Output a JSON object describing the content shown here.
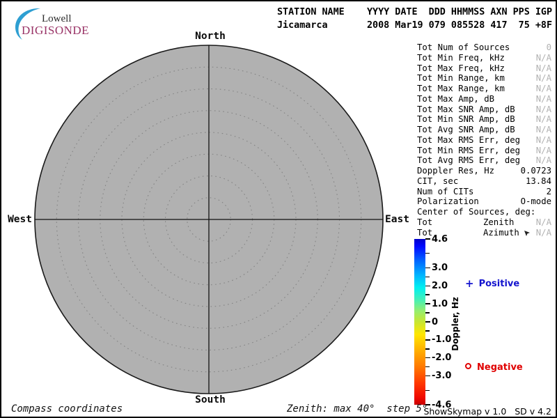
{
  "logo": {
    "top": "Lowell",
    "bottom": "DIGISONDE",
    "brand_color": "#993366",
    "crescent_color": "#2E9FD2"
  },
  "header": {
    "line1": "STATION NAME    YYYY DATE  DDD HHMMSS AXN PPS IGP",
    "line2": "Jicamarca       2008 Mar19 079 085528 417  75 +8F",
    "station": "Jicamarca",
    "year": "2008",
    "date": "Mar19",
    "ddd": "079",
    "hhmmss": "085528",
    "axn": "417",
    "pps": "75",
    "igp": "+8F"
  },
  "skymap": {
    "north": "North",
    "south": "South",
    "west": "West",
    "east": "East",
    "fill_color": "#b1b1b1",
    "zenith_max_deg": 40,
    "zenith_step_deg": 5
  },
  "stats": {
    "rows": [
      {
        "label": "Tot Num of Sources",
        "value": "0",
        "dim": true
      },
      {
        "label": "Tot Min Freq, kHz",
        "value": "N/A",
        "dim": true
      },
      {
        "label": "Tot Max Freq, kHz",
        "value": "N/A",
        "dim": true
      },
      {
        "label": "Tot Min Range, km",
        "value": "N/A",
        "dim": true
      },
      {
        "label": "Tot Max Range, km",
        "value": "N/A",
        "dim": true
      },
      {
        "label": "Tot Max Amp, dB",
        "value": "N/A",
        "dim": true
      },
      {
        "label": "Tot Max SNR Amp, dB",
        "value": "N/A",
        "dim": true
      },
      {
        "label": "Tot Min SNR Amp, dB",
        "value": "N/A",
        "dim": true
      },
      {
        "label": "Tot Avg SNR Amp, dB",
        "value": "N/A",
        "dim": true
      },
      {
        "label": "Tot Max RMS Err, deg",
        "value": "N/A",
        "dim": true
      },
      {
        "label": "Tot Min RMS Err, deg",
        "value": "N/A",
        "dim": true
      },
      {
        "label": "Tot Avg RMS Err, deg",
        "value": "N/A",
        "dim": true
      },
      {
        "label": "Doppler Res, Hz",
        "value": "0.0723",
        "dim": false
      },
      {
        "label": "CIT, sec",
        "value": "13.84",
        "dim": false
      },
      {
        "label": "Num of CITs",
        "value": "2",
        "dim": false
      },
      {
        "label": "Polarization",
        "value": "O-mode",
        "dim": false
      },
      {
        "label": "Center of Sources, deg:",
        "value": "",
        "dim": false
      },
      {
        "label": "Tot",
        "mid": "Zenith",
        "value": "N/A",
        "dim": true
      },
      {
        "label": "Tot",
        "mid": "Azimuth",
        "value": "N/A",
        "dim": true,
        "cursor": true
      }
    ]
  },
  "colorbar": {
    "label": "Doppler, Hz",
    "max": 4.6,
    "min": -4.6,
    "major_ticks": [
      4.6,
      3.0,
      2.0,
      1.0,
      0,
      -1.0,
      -2.0,
      -3.0,
      -4.6
    ],
    "major_labels": [
      "4.6",
      "3.0",
      "2.0",
      "1.0",
      "0",
      "-1.0",
      "-2.0",
      "-3.0",
      "-4.6"
    ],
    "minor_ticks": [
      3.8,
      2.5,
      1.5,
      0.5,
      -0.5,
      -1.5,
      -2.5,
      -3.8
    ],
    "gradient": [
      {
        "v": 4.6,
        "c": "#0000c8"
      },
      {
        "v": 4.2,
        "c": "#0008ff"
      },
      {
        "v": 3.4,
        "c": "#0064ff"
      },
      {
        "v": 2.6,
        "c": "#00b4ff"
      },
      {
        "v": 1.9,
        "c": "#00f0f0"
      },
      {
        "v": 1.2,
        "c": "#48f0b4"
      },
      {
        "v": 0.6,
        "c": "#96ee6e"
      },
      {
        "v": 0.0,
        "c": "#c8e632"
      },
      {
        "v": -0.7,
        "c": "#ffe600"
      },
      {
        "v": -1.5,
        "c": "#ffb400"
      },
      {
        "v": -2.5,
        "c": "#ff7800"
      },
      {
        "v": -3.4,
        "c": "#ff3700"
      },
      {
        "v": -4.2,
        "c": "#f00a00"
      },
      {
        "v": -4.6,
        "c": "#c80000"
      }
    ]
  },
  "legend": {
    "positive_label": "Positive",
    "negative_label": "Negative",
    "positive_color": "#1414ce",
    "negative_color": "#e00000"
  },
  "footer": {
    "left": "Compass coordinates",
    "center": "Zenith: max 40°  step 5°",
    "right": "ShowSkymap v 1.0   SD v 4.2"
  },
  "chart_data": {
    "type": "scatter",
    "title": "Skymap, compass coordinates",
    "points": [],
    "num_sources": 0,
    "zenith_rings_deg": [
      5,
      10,
      15,
      20,
      25,
      30,
      35,
      40
    ],
    "zenith_max_deg": 40,
    "zenith_step_deg": 5,
    "colorbar": {
      "label": "Doppler, Hz",
      "min": -4.6,
      "max": 4.6,
      "major_ticks": [
        4.6,
        3.0,
        2.0,
        1.0,
        0,
        -1.0,
        -2.0,
        -3.0,
        -4.6
      ]
    },
    "legend": [
      "+ Positive",
      "o Negative"
    ]
  }
}
